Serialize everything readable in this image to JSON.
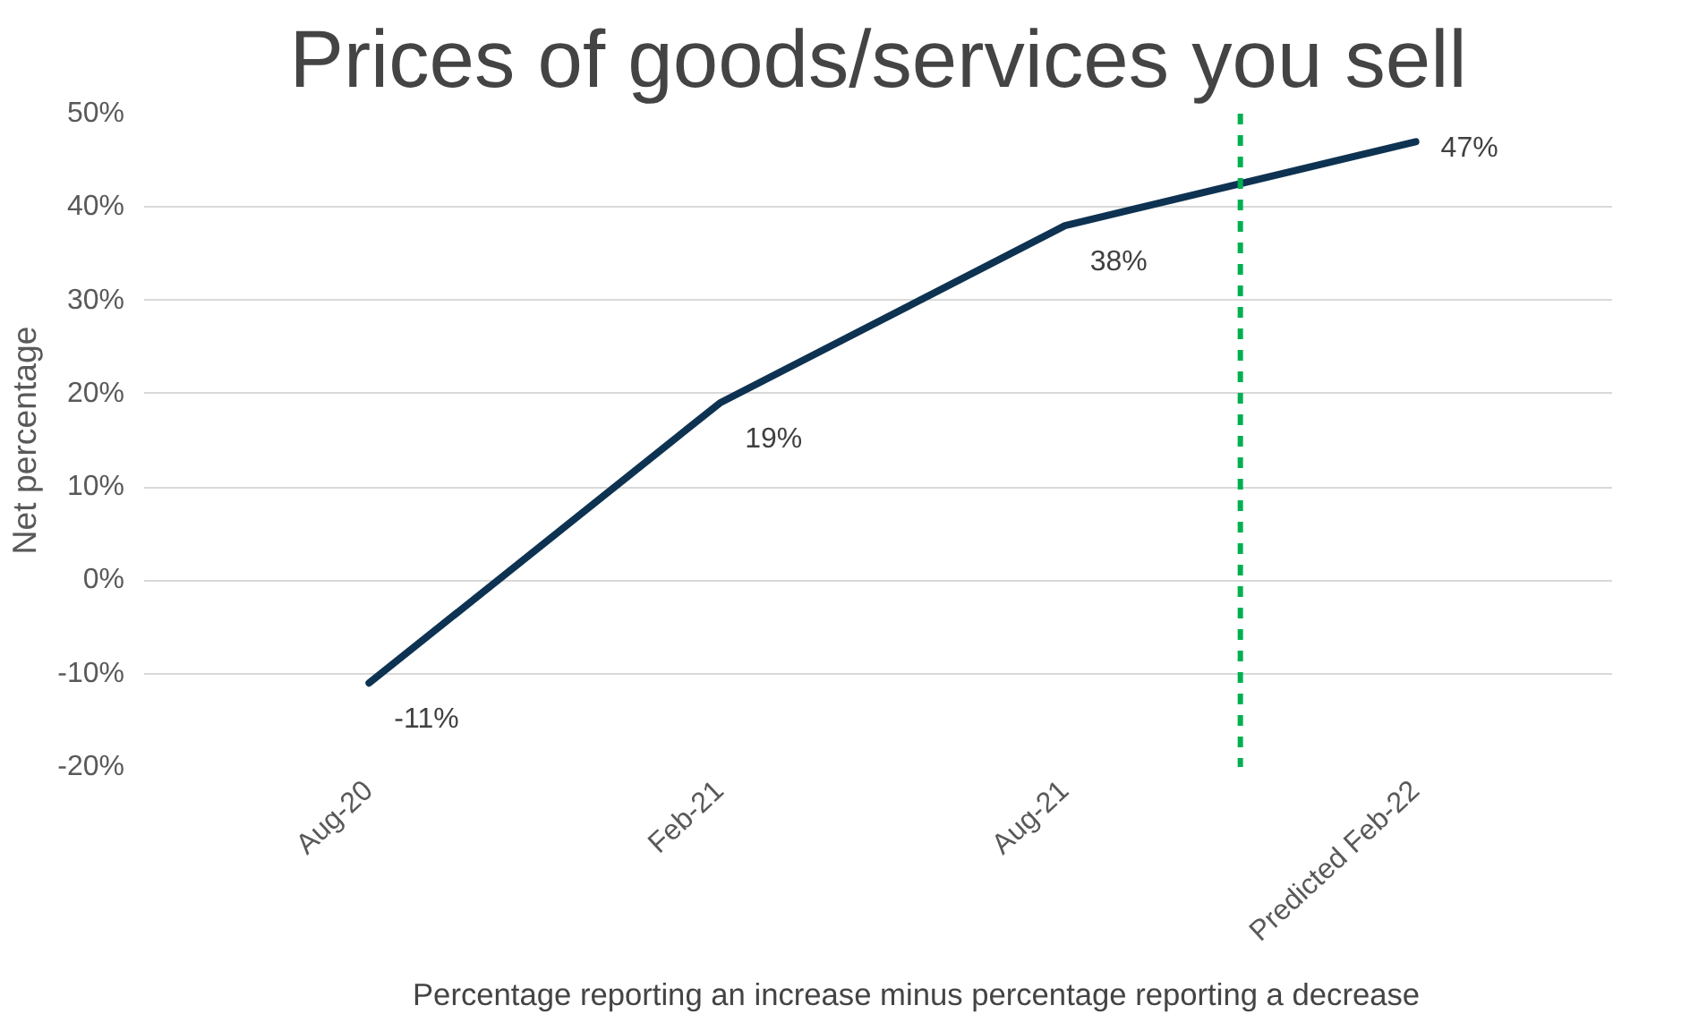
{
  "chart_data": {
    "type": "line",
    "title": "Prices of goods/services you sell",
    "ylabel": "Net percentage",
    "x": [
      "2020-08",
      "2021-02",
      "2021-08",
      "2022-02"
    ],
    "series": [
      {
        "color": "#0e3251",
        "values": [
          -11,
          19,
          38,
          47
        ]
      }
    ],
    "xlim": [
      "2020-04-05",
      "2022-05-15"
    ],
    "xticks": [
      {
        "value": "2020-08",
        "label": "Aug-20"
      },
      {
        "value": "2021-02",
        "label": "Feb-21"
      },
      {
        "value": "2021-08",
        "label": "Aug-21"
      },
      {
        "value": "2022-02",
        "label": "Predicted Feb-22"
      }
    ],
    "ylim": [
      -20,
      50
    ],
    "yticks": [
      {
        "value": -20,
        "label": "-20%"
      },
      {
        "value": -10,
        "label": "-10%"
      },
      {
        "value": 0,
        "label": "0%"
      },
      {
        "value": 10,
        "label": "10%"
      },
      {
        "value": 20,
        "label": "20%"
      },
      {
        "value": 30,
        "label": "30%"
      },
      {
        "value": 40,
        "label": "40%"
      },
      {
        "value": 50,
        "label": "50%"
      }
    ],
    "value_labels": [
      "-11%",
      "19%",
      "38%",
      "47%"
    ],
    "ref_lines": [
      {
        "axis": "x",
        "value": "2021-11",
        "color": "#00b050",
        "line_style": "dashed"
      }
    ],
    "annotations": [
      "Percentage reporting an increase minus percentage reporting a decrease"
    ],
    "grid": "y"
  }
}
